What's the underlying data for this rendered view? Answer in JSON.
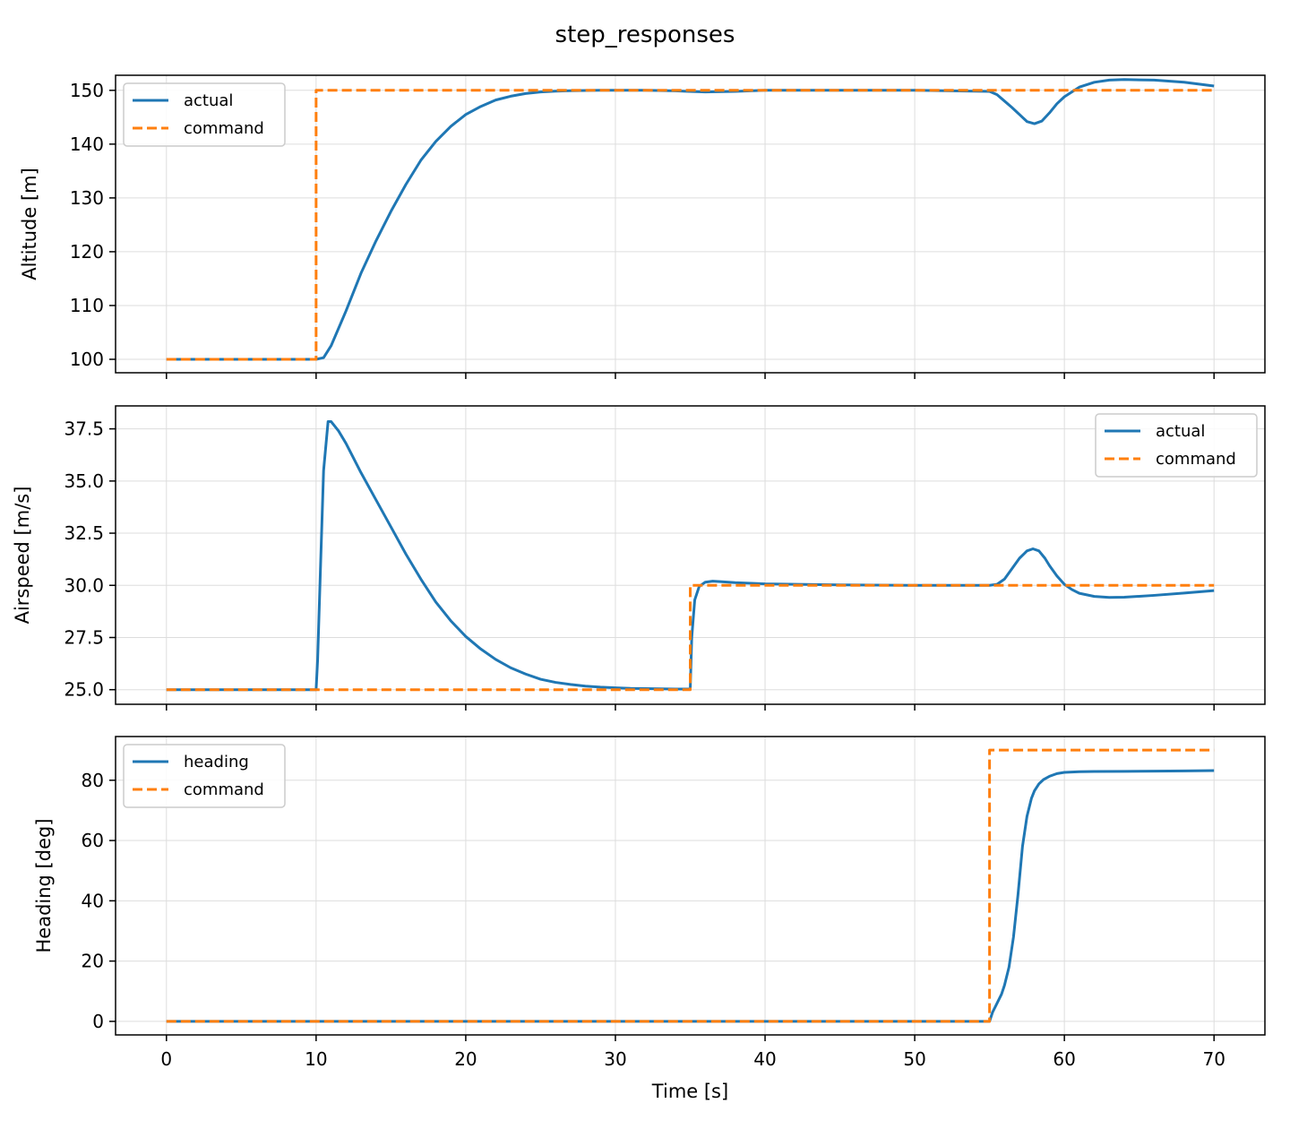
{
  "figure_title": "step_responses",
  "xlabel": "Time [s]",
  "colors": {
    "actual": "#1f77b4",
    "command": "#ff7f0e",
    "grid": "#dddddd"
  },
  "chart_data": [
    {
      "type": "line",
      "title": "",
      "xlabel": "",
      "ylabel": "Altitude [m]",
      "xlim": [
        -3.4,
        73.4
      ],
      "ylim": [
        97.5,
        152.8
      ],
      "xticks": [
        0,
        10,
        20,
        30,
        40,
        50,
        60,
        70
      ],
      "xtick_labels_visible": false,
      "yticks": [
        100,
        110,
        120,
        130,
        140,
        150
      ],
      "grid": true,
      "legend_position": "upper left",
      "series": [
        {
          "name": "actual",
          "style": "solid",
          "x": [
            0,
            10,
            10.5,
            11,
            12,
            13,
            14,
            15,
            16,
            17,
            18,
            19,
            20,
            21,
            22,
            23,
            24,
            25,
            26,
            27,
            28,
            29,
            30,
            32,
            34,
            36,
            38,
            40,
            45,
            50,
            55,
            55.5,
            56,
            56.5,
            57,
            57.5,
            58,
            58.5,
            59,
            59.5,
            60,
            61,
            62,
            63,
            64,
            66,
            68,
            70
          ],
          "y": [
            100,
            100,
            100.3,
            102.5,
            109,
            116,
            122,
            127.5,
            132.5,
            137,
            140.5,
            143.3,
            145.5,
            147,
            148.2,
            148.9,
            149.4,
            149.7,
            149.85,
            149.93,
            149.97,
            150,
            150,
            150,
            149.9,
            149.7,
            149.8,
            150,
            150,
            150,
            149.8,
            149.2,
            148,
            146.8,
            145.5,
            144.2,
            143.8,
            144.3,
            145.8,
            147.5,
            148.8,
            150.6,
            151.5,
            151.9,
            152,
            151.9,
            151.5,
            150.8
          ]
        },
        {
          "name": "command",
          "style": "dashed",
          "x": [
            0,
            10,
            10,
            70
          ],
          "y": [
            100,
            100,
            150,
            150
          ]
        }
      ]
    },
    {
      "type": "line",
      "title": "",
      "xlabel": "",
      "ylabel": "Airspeed [m/s]",
      "xlim": [
        -3.4,
        73.4
      ],
      "ylim": [
        24.3,
        38.6
      ],
      "xticks": [
        0,
        10,
        20,
        30,
        40,
        50,
        60,
        70
      ],
      "xtick_labels_visible": false,
      "yticks": [
        25.0,
        27.5,
        30.0,
        32.5,
        35.0,
        37.5
      ],
      "grid": true,
      "legend_position": "upper right",
      "series": [
        {
          "name": "actual",
          "style": "solid",
          "x": [
            0,
            10,
            10.1,
            10.3,
            10.5,
            10.8,
            11,
            11.5,
            12,
            13,
            14,
            15,
            16,
            17,
            18,
            19,
            20,
            21,
            22,
            23,
            24,
            25,
            26,
            27,
            28,
            29,
            30,
            31,
            32,
            33,
            34,
            35,
            35.1,
            35.3,
            35.6,
            36,
            36.5,
            37,
            38,
            40,
            45,
            50,
            55,
            55.5,
            56,
            56.5,
            57,
            57.5,
            57.9,
            58.3,
            58.7,
            59,
            59.5,
            60,
            60.5,
            61,
            62,
            63,
            64,
            66,
            68,
            70
          ],
          "y": [
            25,
            25,
            26.4,
            31,
            35.5,
            37.85,
            37.85,
            37.4,
            36.8,
            35.4,
            34.1,
            32.8,
            31.5,
            30.3,
            29.2,
            28.3,
            27.55,
            26.95,
            26.45,
            26.05,
            25.75,
            25.5,
            25.35,
            25.25,
            25.17,
            25.12,
            25.09,
            25.06,
            25.05,
            25.04,
            25.03,
            25.03,
            27.5,
            29.3,
            29.95,
            30.15,
            30.2,
            30.18,
            30.13,
            30.07,
            30.02,
            30.0,
            30.0,
            30.05,
            30.3,
            30.8,
            31.3,
            31.65,
            31.75,
            31.65,
            31.3,
            30.95,
            30.45,
            30.05,
            29.8,
            29.62,
            29.47,
            29.42,
            29.43,
            29.52,
            29.63,
            29.75
          ]
        },
        {
          "name": "command",
          "style": "dashed",
          "x": [
            0,
            35,
            35,
            70
          ],
          "y": [
            25,
            25,
            30,
            30
          ]
        }
      ]
    },
    {
      "type": "line",
      "title": "",
      "xlabel": "Time [s]",
      "ylabel": "Heading [deg]",
      "xlim": [
        -3.4,
        73.4
      ],
      "ylim": [
        -4.5,
        94.5
      ],
      "xticks": [
        0,
        10,
        20,
        30,
        40,
        50,
        60,
        70
      ],
      "xtick_labels_visible": true,
      "yticks": [
        0,
        20,
        40,
        60,
        80
      ],
      "grid": true,
      "legend_position": "upper left",
      "series": [
        {
          "name": "heading",
          "style": "solid",
          "x": [
            0,
            55,
            55.2,
            55.5,
            55.8,
            56,
            56.3,
            56.6,
            56.9,
            57.2,
            57.5,
            57.8,
            58,
            58.3,
            58.6,
            59,
            59.5,
            60,
            61,
            62,
            64,
            66,
            68,
            70
          ],
          "y": [
            0,
            0,
            3,
            6,
            9,
            12,
            18,
            28,
            42,
            58,
            68,
            74,
            76.5,
            78.8,
            80.2,
            81.3,
            82.2,
            82.6,
            82.85,
            82.9,
            82.95,
            83.0,
            83.1,
            83.2
          ]
        },
        {
          "name": "command",
          "style": "dashed",
          "x": [
            0,
            55,
            55,
            70
          ],
          "y": [
            0,
            0,
            90,
            90
          ]
        }
      ]
    }
  ]
}
